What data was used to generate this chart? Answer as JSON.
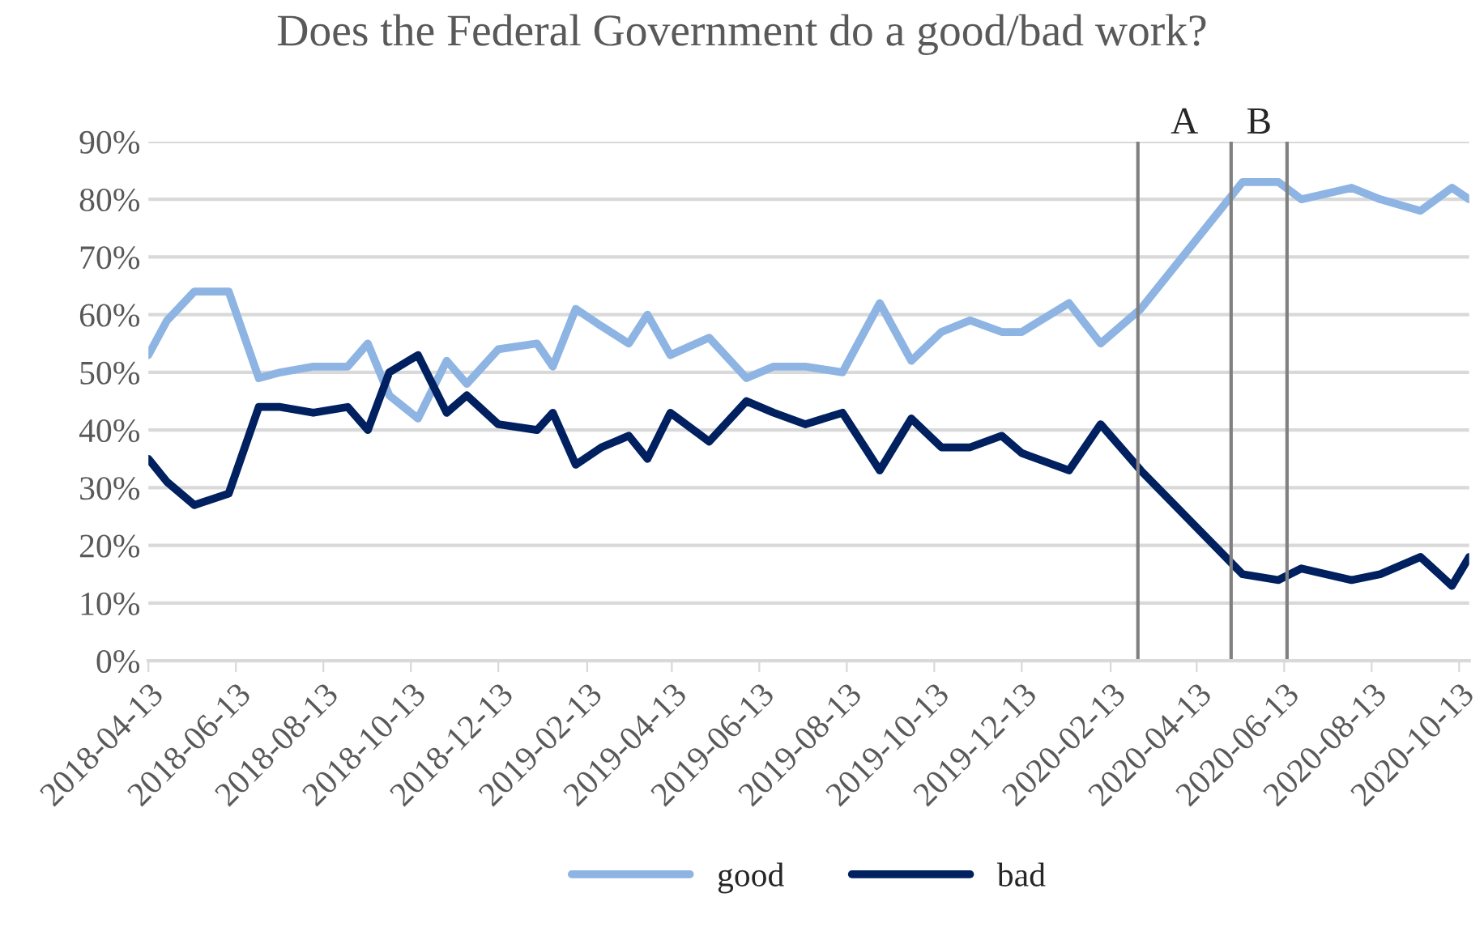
{
  "chart_data": {
    "type": "line",
    "title": "Does the Federal Government do a good/bad work?",
    "x": [
      "2018-04-13",
      "2018-04-26",
      "2018-05-15",
      "2018-06-08",
      "2018-06-29",
      "2018-07-14",
      "2018-08-06",
      "2018-08-30",
      "2018-09-13",
      "2018-09-28",
      "2018-10-18",
      "2018-11-07",
      "2018-11-21",
      "2018-12-13",
      "2019-01-09",
      "2019-01-20",
      "2019-02-05",
      "2019-02-23",
      "2019-03-14",
      "2019-03-27",
      "2019-04-12",
      "2019-05-09",
      "2019-06-04",
      "2019-06-23",
      "2019-07-15",
      "2019-08-10",
      "2019-09-05",
      "2019-09-27",
      "2019-10-18",
      "2019-11-07",
      "2019-11-29",
      "2019-12-13",
      "2020-01-15",
      "2020-02-06",
      "2020-03-05",
      "2020-05-15",
      "2020-06-09",
      "2020-06-25",
      "2020-07-30",
      "2020-08-19",
      "2020-09-16",
      "2020-10-08",
      "2020-10-20"
    ],
    "series": [
      {
        "name": "good",
        "color": "#8db4e2",
        "values": [
          53,
          59,
          64,
          64,
          49,
          50,
          51,
          51,
          55,
          46,
          42,
          52,
          48,
          54,
          55,
          51,
          61,
          58,
          55,
          60,
          53,
          56,
          49,
          51,
          51,
          50,
          62,
          52,
          57,
          59,
          57,
          57,
          62,
          55,
          61,
          83,
          83,
          80,
          82,
          80,
          78,
          82,
          80
        ]
      },
      {
        "name": "bad",
        "color": "#002060",
        "values": [
          35,
          31,
          27,
          29,
          44,
          44,
          43,
          44,
          40,
          50,
          53,
          43,
          46,
          41,
          40,
          43,
          34,
          37,
          39,
          35,
          43,
          38,
          45,
          43,
          41,
          43,
          33,
          42,
          37,
          37,
          39,
          36,
          33,
          41,
          33,
          15,
          14,
          16,
          14,
          15,
          18,
          13,
          18
        ]
      }
    ],
    "xlim": [
      "2018-04-13",
      "2020-10-20"
    ],
    "xticks": [
      {
        "value": "2018-04-13",
        "label": "2018-04-13"
      },
      {
        "value": "2018-06-13",
        "label": "2018-06-13"
      },
      {
        "value": "2018-08-13",
        "label": "2018-08-13"
      },
      {
        "value": "2018-10-13",
        "label": "2018-10-13"
      },
      {
        "value": "2018-12-13",
        "label": "2018-12-13"
      },
      {
        "value": "2019-02-13",
        "label": "2019-02-13"
      },
      {
        "value": "2019-04-13",
        "label": "2019-04-13"
      },
      {
        "value": "2019-06-13",
        "label": "2019-06-13"
      },
      {
        "value": "2019-08-13",
        "label": "2019-08-13"
      },
      {
        "value": "2019-10-13",
        "label": "2019-10-13"
      },
      {
        "value": "2019-12-13",
        "label": "2019-12-13"
      },
      {
        "value": "2020-02-13",
        "label": "2020-02-13"
      },
      {
        "value": "2020-04-13",
        "label": "2020-04-13"
      },
      {
        "value": "2020-06-13",
        "label": "2020-06-13"
      },
      {
        "value": "2020-08-13",
        "label": "2020-08-13"
      },
      {
        "value": "2020-10-13",
        "label": "2020-10-13"
      }
    ],
    "ylim": [
      0,
      90
    ],
    "yticks": [
      {
        "value": 0,
        "label": "0%"
      },
      {
        "value": 10,
        "label": "10%"
      },
      {
        "value": 20,
        "label": "20%"
      },
      {
        "value": 30,
        "label": "30%"
      },
      {
        "value": 40,
        "label": "40%"
      },
      {
        "value": 50,
        "label": "50%"
      },
      {
        "value": 60,
        "label": "60%"
      },
      {
        "value": 70,
        "label": "70%"
      },
      {
        "value": 80,
        "label": "80%"
      },
      {
        "value": 90,
        "label": "90%"
      }
    ],
    "grid": "y",
    "legend": "bottom",
    "line_style": "solid",
    "ref_lines": [
      {
        "axis": "x",
        "value": "2020-03-03",
        "color": "#808080"
      },
      {
        "axis": "x",
        "value": "2020-05-07",
        "color": "#808080"
      },
      {
        "axis": "x",
        "value": "2020-06-15",
        "color": "#808080"
      }
    ],
    "annotations": [
      "A",
      "B"
    ]
  }
}
